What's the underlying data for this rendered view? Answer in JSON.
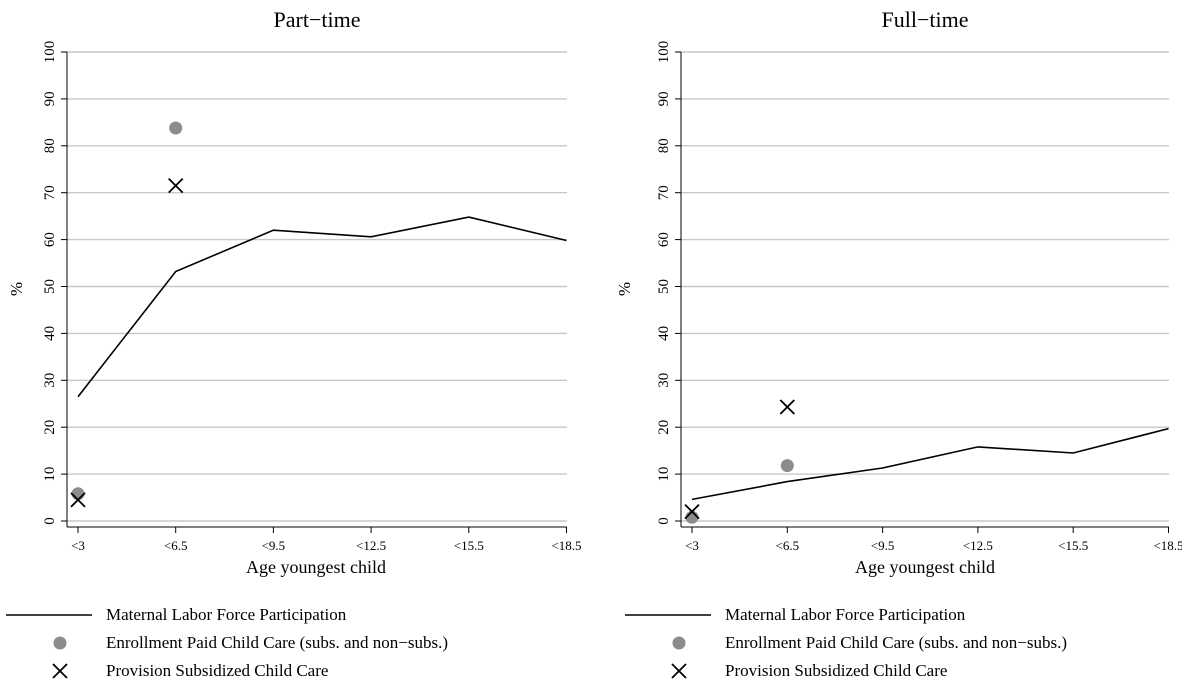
{
  "chart_data": [
    {
      "type": "line",
      "title": "Part−time",
      "xlabel": "Age youngest child",
      "ylabel": "%",
      "categories": [
        "<3",
        "<6.5",
        "<9.5",
        "<12.5",
        "<15.5",
        "<18.5"
      ],
      "ylim": [
        0,
        100
      ],
      "yticks": [
        "0",
        "10",
        "20",
        "30",
        "40",
        "50",
        "60",
        "70",
        "80",
        "90",
        "100"
      ],
      "grid": true,
      "series": [
        {
          "name": "Maternal Labor Force Participation",
          "marker": "line",
          "color": "#000000",
          "values": [
            26.5,
            53.2,
            62.0,
            60.6,
            64.8,
            59.8
          ]
        },
        {
          "name": "Enrollment Paid Child Care (subs. and non−subs.)",
          "marker": "circle",
          "color": "#8c8c8c",
          "values": [
            5.8,
            83.8,
            null,
            null,
            null,
            null
          ]
        },
        {
          "name": "Provision Subsidized Child Care",
          "marker": "x",
          "color": "#000000",
          "values": [
            4.5,
            71.5,
            null,
            null,
            null,
            null
          ]
        }
      ],
      "legend": "bottom"
    },
    {
      "type": "line",
      "title": "Full−time",
      "xlabel": "Age youngest child",
      "ylabel": "%",
      "categories": [
        "<3",
        "<6.5",
        "<9.5",
        "<12.5",
        "<15.5",
        "<18.5"
      ],
      "ylim": [
        0,
        100
      ],
      "yticks": [
        "0",
        "10",
        "20",
        "30",
        "40",
        "50",
        "60",
        "70",
        "80",
        "90",
        "100"
      ],
      "grid": true,
      "series": [
        {
          "name": "Maternal Labor Force Participation",
          "marker": "line",
          "color": "#000000",
          "values": [
            4.6,
            8.4,
            11.3,
            15.8,
            14.5,
            19.7
          ]
        },
        {
          "name": "Enrollment Paid Child Care (subs. and non−subs.)",
          "marker": "circle",
          "color": "#8c8c8c",
          "values": [
            0.8,
            11.8,
            null,
            null,
            null,
            null
          ]
        },
        {
          "name": "Provision Subsidized Child Care",
          "marker": "x",
          "color": "#000000",
          "values": [
            2.0,
            24.3,
            null,
            null,
            null,
            null
          ]
        }
      ],
      "legend": "bottom"
    }
  ]
}
